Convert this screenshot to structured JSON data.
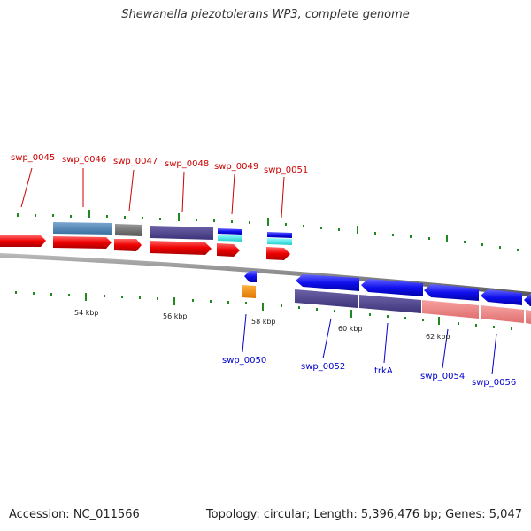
{
  "title": "Shewanella piezotolerans WP3, complete genome",
  "footer": {
    "accession": "Accession: NC_011566",
    "stats": "Topology: circular; Length: 5,396,476 bp; Genes: 5,047"
  },
  "colors": {
    "forward_label": "#cc0000",
    "reverse_label": "#0000cc",
    "forward_cds": "#ee1111",
    "reverse_cds": "#1111ee",
    "tick": "#228822",
    "backbone": "#888888"
  },
  "ruler_labels": [
    "54 kbp",
    "56 kbp",
    "58 kbp",
    "60 kbp",
    "62 kbp"
  ],
  "top_labels": [
    "swp_0045",
    "swp_0046",
    "swp_0047",
    "swp_0048",
    "swp_0049",
    "swp_0051"
  ],
  "bottom_labels": [
    "swp_0050",
    "swp_0052",
    "trkA",
    "swp_0054",
    "swp_0056"
  ]
}
